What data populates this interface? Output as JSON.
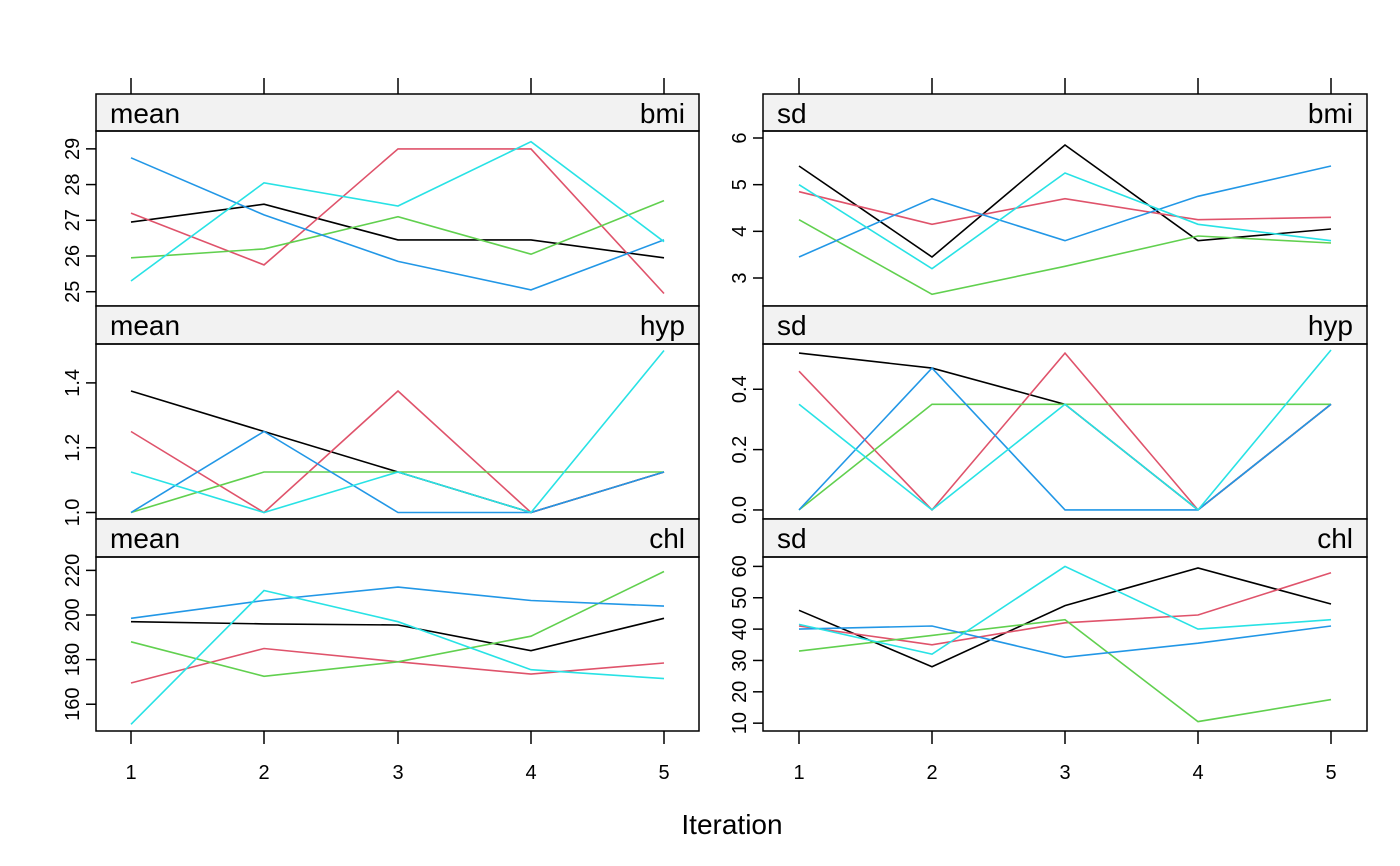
{
  "chart_data": [
    {
      "type": "line",
      "stat": "mean",
      "variable": "bmi",
      "x": [
        1,
        2,
        3,
        4,
        5
      ],
      "yticks": [
        "25",
        "26",
        "27",
        "28",
        "29"
      ],
      "ylim": [
        24.6,
        29.5
      ],
      "series": [
        {
          "color": "#000000",
          "values": [
            26.95,
            27.45,
            26.45,
            26.45,
            25.95
          ]
        },
        {
          "color": "#DF536B",
          "values": [
            27.2,
            25.75,
            29.0,
            29.0,
            24.95
          ]
        },
        {
          "color": "#61D04F",
          "values": [
            25.95,
            26.2,
            27.1,
            26.05,
            27.55
          ]
        },
        {
          "color": "#2297E6",
          "values": [
            28.75,
            27.15,
            25.85,
            25.05,
            26.45
          ]
        },
        {
          "color": "#28E2E5",
          "values": [
            25.3,
            28.05,
            27.4,
            29.2,
            26.4
          ]
        }
      ]
    },
    {
      "type": "line",
      "stat": "sd",
      "variable": "bmi",
      "x": [
        1,
        2,
        3,
        4,
        5
      ],
      "yticks": [
        "3",
        "4",
        "5",
        "6"
      ],
      "ylim": [
        2.4,
        6.15
      ],
      "series": [
        {
          "color": "#000000",
          "values": [
            5.4,
            3.45,
            5.85,
            3.8,
            4.05
          ]
        },
        {
          "color": "#DF536B",
          "values": [
            4.85,
            4.15,
            4.7,
            4.25,
            4.3
          ]
        },
        {
          "color": "#61D04F",
          "values": [
            4.25,
            2.65,
            3.25,
            3.9,
            3.75
          ]
        },
        {
          "color": "#2297E6",
          "values": [
            3.45,
            4.7,
            3.8,
            4.75,
            5.4
          ]
        },
        {
          "color": "#28E2E5",
          "values": [
            5.0,
            3.2,
            5.25,
            4.15,
            3.8
          ]
        }
      ]
    },
    {
      "type": "line",
      "stat": "mean",
      "variable": "hyp",
      "x": [
        1,
        2,
        3,
        4,
        5
      ],
      "yticks": [
        "1.0",
        "1.2",
        "1.4"
      ],
      "ylim": [
        0.98,
        1.52
      ],
      "series": [
        {
          "color": "#000000",
          "values": [
            1.375,
            1.25,
            1.125,
            1.0,
            1.125
          ]
        },
        {
          "color": "#DF536B",
          "values": [
            1.25,
            1.0,
            1.375,
            1.0,
            1.125
          ]
        },
        {
          "color": "#61D04F",
          "values": [
            1.0,
            1.125,
            1.125,
            1.125,
            1.125
          ]
        },
        {
          "color": "#2297E6",
          "values": [
            1.0,
            1.25,
            1.0,
            1.0,
            1.125
          ]
        },
        {
          "color": "#28E2E5",
          "values": [
            1.125,
            1.0,
            1.125,
            1.0,
            1.5
          ]
        }
      ]
    },
    {
      "type": "line",
      "stat": "sd",
      "variable": "hyp",
      "x": [
        1,
        2,
        3,
        4,
        5
      ],
      "yticks": [
        "0.0",
        "0.2",
        "0.4"
      ],
      "ylim": [
        -0.03,
        0.55
      ],
      "series": [
        {
          "color": "#000000",
          "values": [
            0.52,
            0.47,
            0.35,
            0.0,
            0.35
          ]
        },
        {
          "color": "#DF536B",
          "values": [
            0.46,
            0.0,
            0.52,
            0.0,
            0.35
          ]
        },
        {
          "color": "#61D04F",
          "values": [
            0.0,
            0.35,
            0.35,
            0.35,
            0.35
          ]
        },
        {
          "color": "#2297E6",
          "values": [
            0.0,
            0.47,
            0.0,
            0.0,
            0.35
          ]
        },
        {
          "color": "#28E2E5",
          "values": [
            0.35,
            0.0,
            0.35,
            0.0,
            0.53
          ]
        }
      ]
    },
    {
      "type": "line",
      "stat": "mean",
      "variable": "chl",
      "x": [
        1,
        2,
        3,
        4,
        5
      ],
      "yticks": [
        "160",
        "180",
        "200",
        "220"
      ],
      "ylim": [
        148,
        226
      ],
      "series": [
        {
          "color": "#000000",
          "values": [
            197,
            196,
            195.5,
            184,
            198.5
          ]
        },
        {
          "color": "#DF536B",
          "values": [
            169.5,
            185,
            179,
            173.5,
            178.5
          ]
        },
        {
          "color": "#61D04F",
          "values": [
            188,
            172.5,
            179,
            190.5,
            219.5
          ]
        },
        {
          "color": "#2297E6",
          "values": [
            198.5,
            206.5,
            212.5,
            206.5,
            204
          ]
        },
        {
          "color": "#28E2E5",
          "values": [
            151,
            211,
            197,
            175.5,
            171.5
          ]
        }
      ]
    },
    {
      "type": "line",
      "stat": "sd",
      "variable": "chl",
      "x": [
        1,
        2,
        3,
        4,
        5
      ],
      "yticks": [
        "10",
        "20",
        "30",
        "40",
        "50",
        "60"
      ],
      "ylim": [
        7.5,
        63
      ],
      "series": [
        {
          "color": "#000000",
          "values": [
            46,
            28,
            47.5,
            59.5,
            48
          ]
        },
        {
          "color": "#DF536B",
          "values": [
            41,
            35,
            42,
            44.5,
            58
          ]
        },
        {
          "color": "#61D04F",
          "values": [
            33,
            38,
            43,
            10.5,
            17.5
          ]
        },
        {
          "color": "#2297E6",
          "values": [
            40,
            41,
            31,
            35.5,
            41
          ]
        },
        {
          "color": "#28E2E5",
          "values": [
            41.5,
            32,
            60,
            40,
            43
          ]
        }
      ]
    }
  ],
  "xlabel": "Iteration",
  "xticks": [
    "1",
    "2",
    "3",
    "4",
    "5"
  ]
}
